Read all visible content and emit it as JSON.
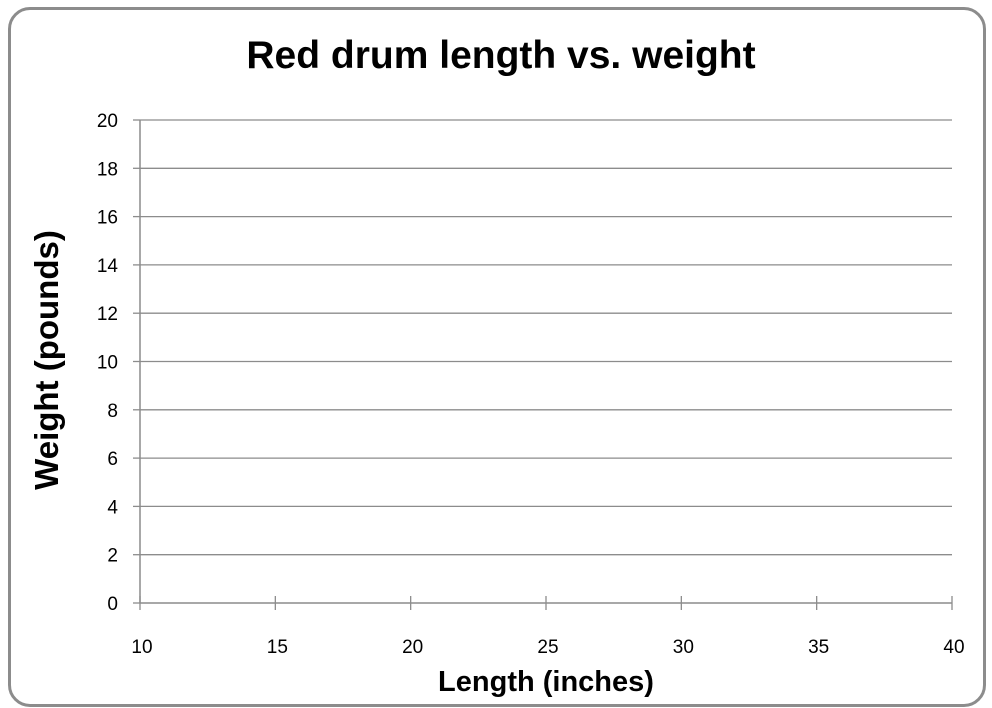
{
  "chart_data": {
    "type": "scatter",
    "title": "Red drum length vs. weight",
    "xlabel": "Length (inches)",
    "ylabel": "Weight (pounds)",
    "xlim": [
      10,
      40
    ],
    "ylim": [
      0,
      20
    ],
    "x_ticks": [
      "10",
      "15",
      "20",
      "25",
      "30",
      "35",
      "40"
    ],
    "y_ticks": [
      "0",
      "2",
      "4",
      "6",
      "8",
      "10",
      "12",
      "14",
      "16",
      "18",
      "20"
    ],
    "grid": "horizontal",
    "legend": "none",
    "series": [],
    "colors": {
      "frame": "#8c8c8c",
      "gridline": "#8c8c8c",
      "axis": "#8c8c8c"
    }
  }
}
